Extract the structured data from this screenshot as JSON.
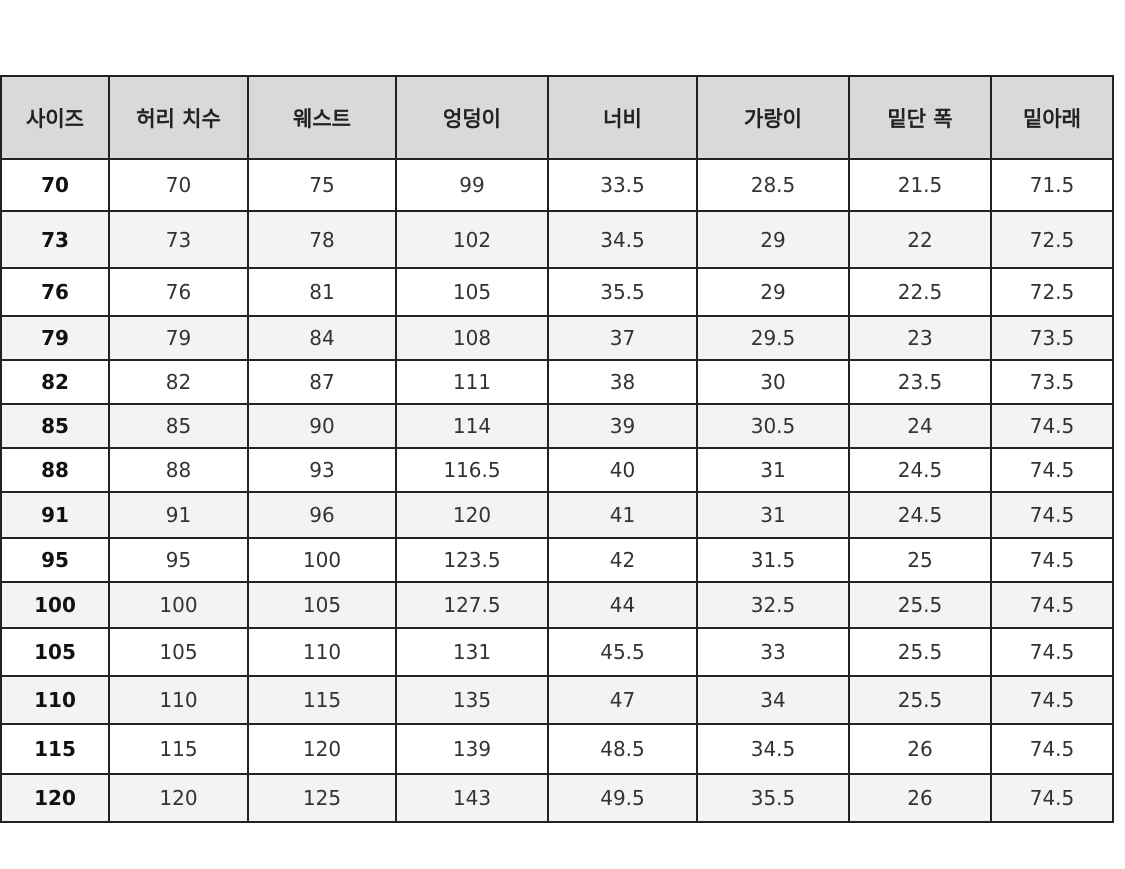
{
  "table": {
    "headers": [
      "사이즈",
      "허리 치수",
      "웨스트",
      "엉덩이",
      "너비",
      "가랑이",
      "밑단 폭",
      "밑아래"
    ],
    "rows": [
      [
        "70",
        "70",
        "75",
        "99",
        "33.5",
        "28.5",
        "21.5",
        "71.5"
      ],
      [
        "73",
        "73",
        "78",
        "102",
        "34.5",
        "29",
        "22",
        "72.5"
      ],
      [
        "76",
        "76",
        "81",
        "105",
        "35.5",
        "29",
        "22.5",
        "72.5"
      ],
      [
        "79",
        "79",
        "84",
        "108",
        "37",
        "29.5",
        "23",
        "73.5"
      ],
      [
        "82",
        "82",
        "87",
        "111",
        "38",
        "30",
        "23.5",
        "73.5"
      ],
      [
        "85",
        "85",
        "90",
        "114",
        "39",
        "30.5",
        "24",
        "74.5"
      ],
      [
        "88",
        "88",
        "93",
        "116.5",
        "40",
        "31",
        "24.5",
        "74.5"
      ],
      [
        "91",
        "91",
        "96",
        "120",
        "41",
        "31",
        "24.5",
        "74.5"
      ],
      [
        "95",
        "95",
        "100",
        "123.5",
        "42",
        "31.5",
        "25",
        "74.5"
      ],
      [
        "100",
        "100",
        "105",
        "127.5",
        "44",
        "32.5",
        "25.5",
        "74.5"
      ],
      [
        "105",
        "105",
        "110",
        "131",
        "45.5",
        "33",
        "25.5",
        "74.5"
      ],
      [
        "110",
        "110",
        "115",
        "135",
        "47",
        "34",
        "25.5",
        "74.5"
      ],
      [
        "115",
        "115",
        "120",
        "139",
        "48.5",
        "34.5",
        "26",
        "74.5"
      ],
      [
        "120",
        "120",
        "125",
        "143",
        "49.5",
        "35.5",
        "26",
        "74.5"
      ]
    ]
  },
  "colors": {
    "header_bg": "#d9d9d9",
    "alt_row_bg": "#f3f3f3",
    "border": "#222222"
  }
}
